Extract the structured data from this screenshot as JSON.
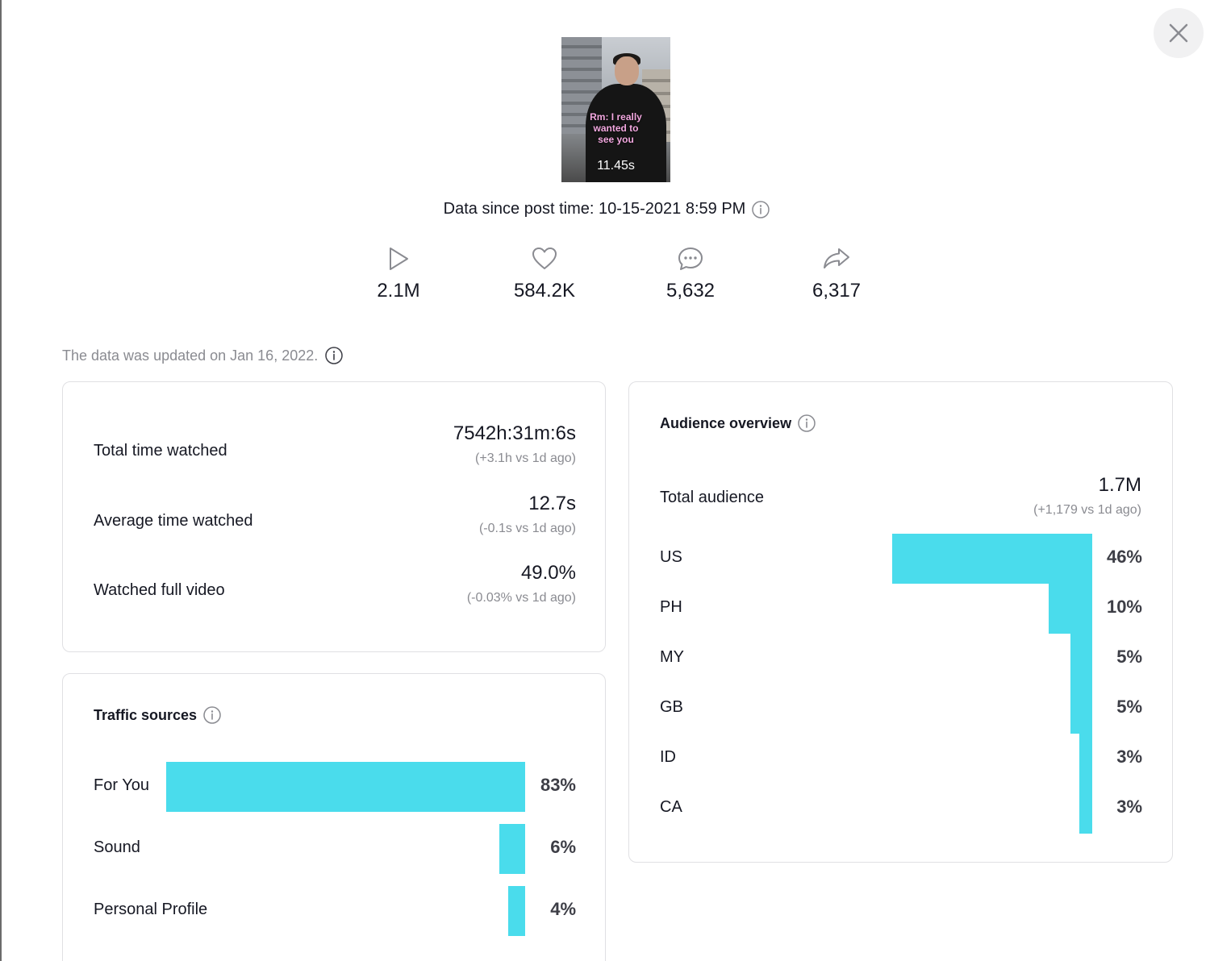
{
  "video": {
    "caption": "Rm: I really wanted to see you",
    "duration": "11.45s"
  },
  "post_time": {
    "label": "Data since post time: 10-15-2021 8:59 PM"
  },
  "stats": [
    {
      "icon": "play-icon",
      "value": "2.1M"
    },
    {
      "icon": "heart-icon",
      "value": "584.2K"
    },
    {
      "icon": "comment-icon",
      "value": "5,632"
    },
    {
      "icon": "share-icon",
      "value": "6,317"
    }
  ],
  "updated_text": "The data was updated on Jan 16, 2022.",
  "watch": {
    "total": {
      "label": "Total time watched",
      "value": "7542h:31m:6s",
      "delta": "(+3.1h vs 1d ago)"
    },
    "average": {
      "label": "Average time watched",
      "value": "12.7s",
      "delta": "(-0.1s vs 1d ago)"
    },
    "full": {
      "label": "Watched full video",
      "value": "49.0%",
      "delta": "(-0.03% vs 1d ago)"
    }
  },
  "traffic": {
    "title": "Traffic sources",
    "items": [
      {
        "label": "For You",
        "pct": "83%",
        "value": 83
      },
      {
        "label": "Sound",
        "pct": "6%",
        "value": 6
      },
      {
        "label": "Personal Profile",
        "pct": "4%",
        "value": 4
      }
    ]
  },
  "audience": {
    "title": "Audience overview",
    "total_label": "Total audience",
    "total_value": "1.7M",
    "total_delta": "(+1,179 vs 1d ago)",
    "countries": [
      {
        "label": "US",
        "pct": "46%",
        "value": 46
      },
      {
        "label": "PH",
        "pct": "10%",
        "value": 10
      },
      {
        "label": "MY",
        "pct": "5%",
        "value": 5
      },
      {
        "label": "GB",
        "pct": "5%",
        "value": 5
      },
      {
        "label": "ID",
        "pct": "3%",
        "value": 3
      },
      {
        "label": "CA",
        "pct": "3%",
        "value": 3
      }
    ]
  },
  "colors": {
    "bar": "#4adcec",
    "muted": "#8a8b91",
    "text": "#161823"
  }
}
